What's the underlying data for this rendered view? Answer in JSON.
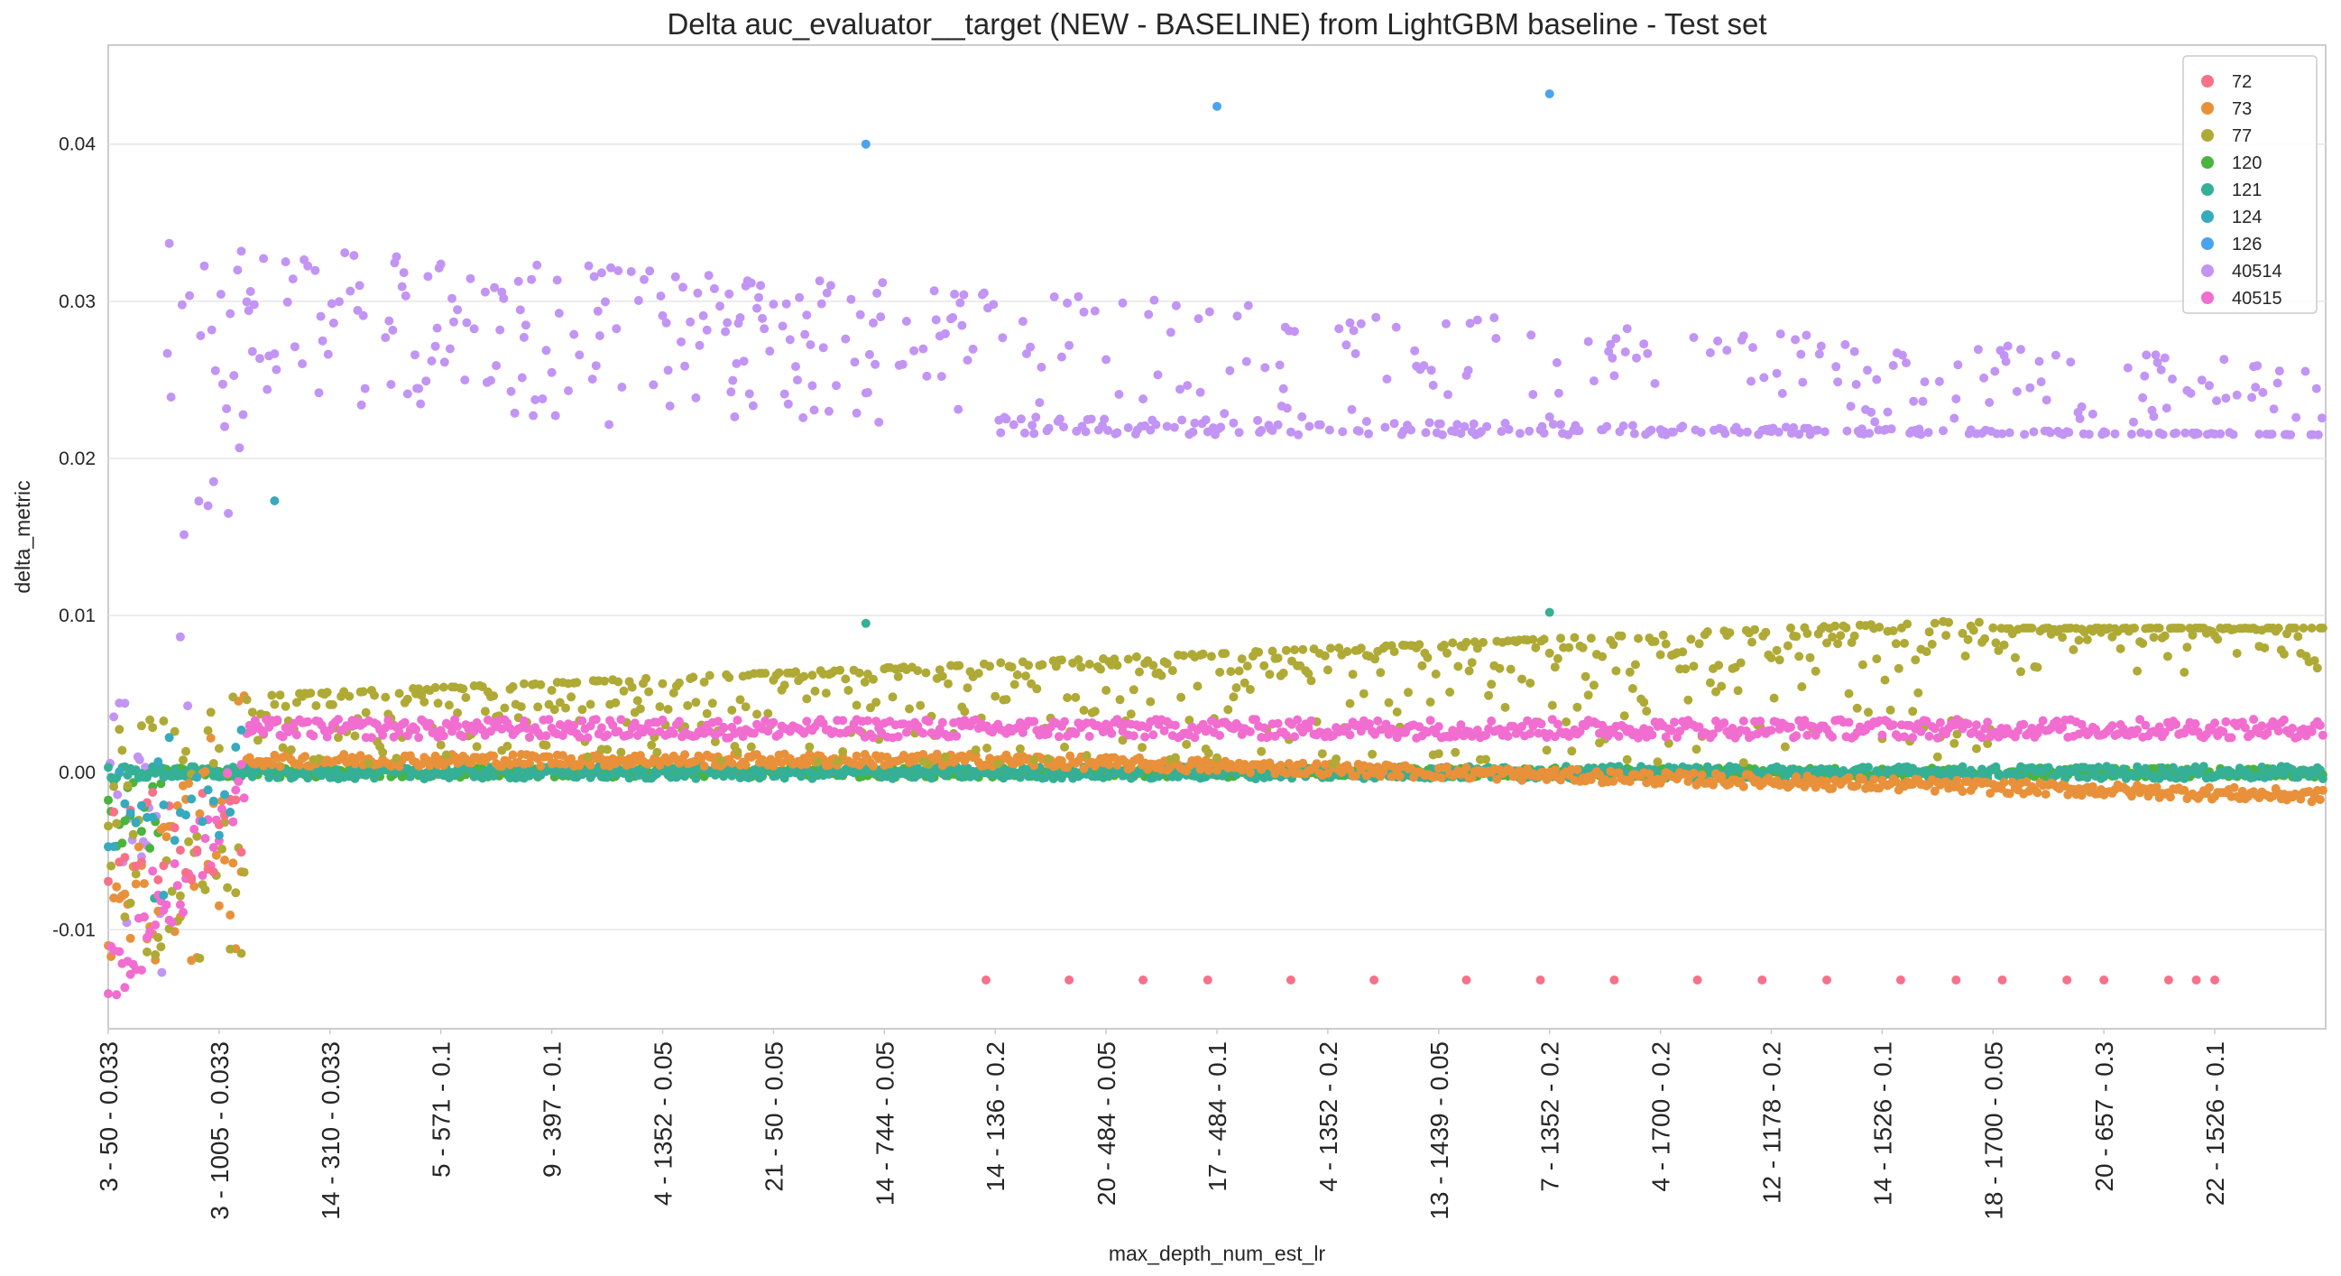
{
  "chart_data": {
    "type": "scatter",
    "title": "Delta auc_evaluator__target (NEW - BASELINE) from LightGBM baseline - Test set",
    "xlabel": "max_depth_num_est_lr",
    "ylabel": "delta_metric",
    "ylim": [
      -0.0163,
      0.0463
    ],
    "y_ticks": [
      -0.01,
      0.0,
      0.01,
      0.02,
      0.03,
      0.04
    ],
    "y_tick_labels": [
      "-0.01",
      "0.00",
      "0.01",
      "0.02",
      "0.03",
      "0.04"
    ],
    "x_count": 2400,
    "categories": [
      "3 - 50 - 0.033",
      "3 - 1005 - 0.033",
      "14 - 310 - 0.033",
      "5 - 571 - 0.1",
      "9 - 397 - 0.1",
      "4 - 1352 - 0.05",
      "21 - 50 - 0.05",
      "14 - 744 - 0.05",
      "14 - 136 - 0.2",
      "20 - 484 - 0.05",
      "17 - 484 - 0.1",
      "4 - 1352 - 0.2",
      "13 - 1439 - 0.05",
      "7 - 1352 - 0.2",
      "4 - 1700 - 0.2",
      "12 - 1178 - 0.2",
      "14 - 1526 - 0.1",
      "18 - 1700 - 0.05",
      "20 - 657 - 0.3",
      "22 - 1526 - 0.1"
    ],
    "category_index": [
      0,
      120,
      240,
      360,
      480,
      600,
      720,
      840,
      960,
      1080,
      1200,
      1320,
      1440,
      1560,
      1680,
      1800,
      1920,
      2040,
      2160,
      2280
    ],
    "grid": true,
    "legend_position": "upper-right",
    "series": [
      {
        "name": "72",
        "color": "#f77189",
        "pattern": "flat",
        "level": 0.0,
        "early": -0.008,
        "samples": [
          [
            950,
            -0.0132
          ],
          [
            1040,
            -0.0132
          ],
          [
            1120,
            -0.0132
          ],
          [
            1190,
            -0.0132
          ],
          [
            1280,
            -0.0132
          ],
          [
            1370,
            -0.0132
          ],
          [
            1470,
            -0.0132
          ],
          [
            1550,
            -0.0132
          ],
          [
            1630,
            -0.0132
          ],
          [
            1720,
            -0.0132
          ],
          [
            1790,
            -0.0132
          ],
          [
            1860,
            -0.0132
          ],
          [
            1940,
            -0.0132
          ],
          [
            2000,
            -0.0132
          ],
          [
            2050,
            -0.0132
          ],
          [
            2120,
            -0.0132
          ],
          [
            2160,
            -0.0132
          ],
          [
            2230,
            -0.0132
          ],
          [
            2260,
            -0.0132
          ],
          [
            2280,
            -0.0132
          ]
        ]
      },
      {
        "name": "73",
        "color": "#e8913a",
        "pattern": "decline",
        "start": 0.0008,
        "end": -0.0015,
        "spread": 0.0008
      },
      {
        "name": "77",
        "color": "#afaa36",
        "pattern": "rise",
        "start": 0.003,
        "end": 0.0092,
        "spread": 0.004
      },
      {
        "name": "120",
        "color": "#4bb33e",
        "pattern": "zero",
        "level": 0.0
      },
      {
        "name": "121",
        "color": "#35b096",
        "pattern": "band",
        "level": 0.0,
        "samples": [
          [
            50,
            -0.008
          ],
          [
            150,
            0.0005
          ],
          [
            820,
            0.0095
          ],
          [
            1560,
            0.0102
          ]
        ]
      },
      {
        "name": "124",
        "color": "#37aabf",
        "pattern": "flat",
        "level": 0.0,
        "samples": [
          [
            60,
            -0.0078
          ],
          [
            180,
            0.0173
          ]
        ]
      },
      {
        "name": "126",
        "color": "#4aa3ee",
        "pattern": "points",
        "samples": [
          [
            820,
            0.04
          ],
          [
            1200,
            0.0424
          ],
          [
            1560,
            0.0432
          ]
        ]
      },
      {
        "name": "40514",
        "color": "#c294f4",
        "pattern": "cloud",
        "floor": 0.0215,
        "ceiling": 0.034
      },
      {
        "name": "40515",
        "color": "#f16dd0",
        "pattern": "plateau",
        "level": 0.0028,
        "early": -0.013,
        "spread": 0.0012
      }
    ]
  }
}
